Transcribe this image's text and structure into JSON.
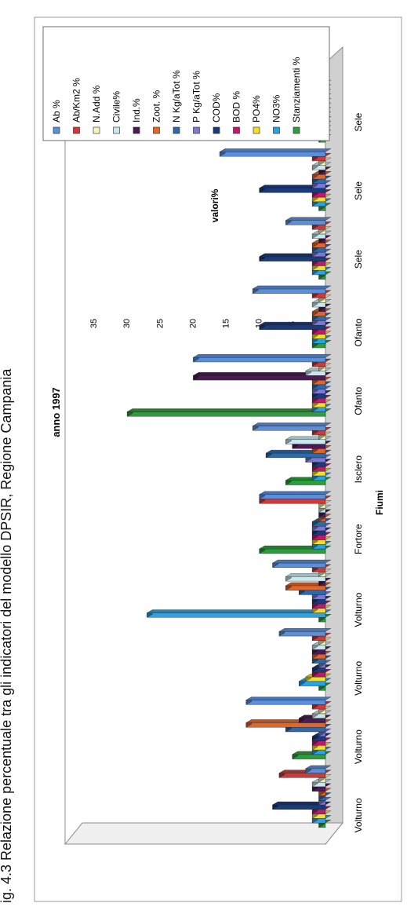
{
  "caption": "ig. 4.3 Relazione percentuale tra gli indicatori del modello DPSIR, Regione Campania",
  "chart_data": {
    "type": "bar",
    "title": "anno 1997",
    "xlabel": "Fiumi",
    "ylabel": "valori%",
    "ylim": [
      0,
      35
    ],
    "y_ticks": [
      "-",
      "5",
      "10",
      "15",
      "20",
      "25",
      "30",
      "35"
    ],
    "categories": [
      "Volturno",
      "Volturno",
      "Volturno",
      "Volturno",
      "Fortore",
      "Isclero",
      "Ofanto",
      "Ofanto",
      "Sele",
      "Sele",
      "Sele"
    ],
    "legend_position": "right",
    "series": [
      {
        "name": "Ab %",
        "color": "#5b8fd9",
        "values": [
          3,
          12,
          7,
          8,
          10,
          11,
          20,
          11,
          6,
          16,
          1
        ]
      },
      {
        "name": "Ab/Km2 %",
        "color": "#cc3b3b",
        "values": [
          7,
          2,
          2,
          2,
          10,
          2,
          2,
          2,
          2,
          2,
          1
        ]
      },
      {
        "name": "N.Add %",
        "color": "#f7f7bd",
        "values": [
          1,
          1,
          1,
          1,
          1,
          1,
          1,
          1,
          1,
          1,
          1
        ]
      },
      {
        "name": "Civile%",
        "color": "#c9e9ef",
        "values": [
          2,
          2,
          2,
          6,
          1,
          6,
          3,
          2,
          2,
          2,
          1
        ]
      },
      {
        "name": "Ind.%",
        "color": "#4c1a55",
        "values": [
          2,
          4,
          2,
          1,
          1,
          5,
          20,
          1,
          1,
          1,
          1
        ]
      },
      {
        "name": "Zoot. %",
        "color": "#e0662c",
        "values": [
          1,
          12,
          2,
          6,
          1,
          2,
          2,
          2,
          2,
          2,
          1
        ]
      },
      {
        "name": "N Kg/aTot %",
        "color": "#2e6aa8",
        "values": [
          1,
          6,
          2,
          4,
          2,
          9,
          2,
          2,
          2,
          2,
          1
        ]
      },
      {
        "name": "P Kg/aTot %",
        "color": "#7b78d8",
        "values": [
          1,
          1,
          1,
          2,
          2,
          3,
          2,
          2,
          2,
          2,
          1
        ]
      },
      {
        "name": "COD%",
        "color": "#1b3a78",
        "values": [
          8,
          2,
          2,
          2,
          2,
          2,
          2,
          10,
          10,
          10,
          1
        ]
      },
      {
        "name": "BOD %",
        "color": "#c0186a",
        "values": [
          2,
          2,
          2,
          2,
          2,
          2,
          2,
          2,
          2,
          2,
          1
        ]
      },
      {
        "name": "PO4%",
        "color": "#f0e02a",
        "values": [
          2,
          2,
          3,
          2,
          2,
          2,
          2,
          2,
          2,
          2,
          1
        ]
      },
      {
        "name": "NO3%",
        "color": "#2aa3e6",
        "values": [
          2,
          2,
          4,
          27,
          2,
          2,
          2,
          2,
          2,
          2,
          1
        ]
      },
      {
        "name": "Stanziamenti %",
        "color": "#2e9e3c",
        "values": [
          1,
          5,
          1,
          1,
          10,
          6,
          30,
          2,
          1,
          1,
          1
        ]
      }
    ]
  }
}
